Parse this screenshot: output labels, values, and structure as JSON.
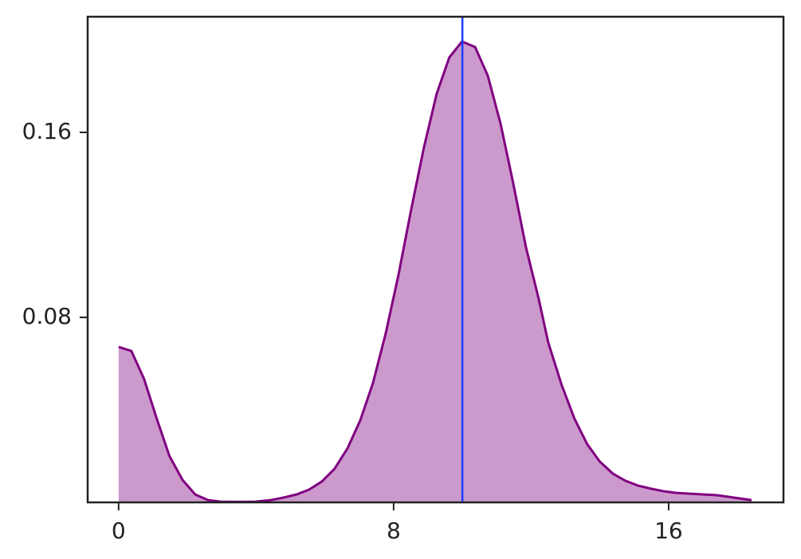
{
  "chart_data": {
    "type": "area",
    "x": [
      0,
      0.37,
      0.74,
      1.11,
      1.48,
      1.86,
      2.23,
      2.6,
      2.97,
      3.5,
      3.97,
      4.43,
      4.8,
      5.17,
      5.54,
      5.91,
      6.28,
      6.66,
      7.03,
      7.4,
      7.77,
      8.14,
      8.51,
      8.88,
      9.25,
      9.62,
      9.99,
      10.37,
      10.74,
      11.11,
      11.48,
      11.85,
      12.22,
      12.5,
      12.89,
      13.26,
      13.63,
      14.0,
      14.38,
      14.75,
      15.12,
      15.49,
      15.86,
      16.23,
      17.41,
      18.41
    ],
    "series": [
      {
        "color": "#800080",
        "values": [
          0.0672,
          0.0655,
          0.0534,
          0.0362,
          0.02,
          0.0097,
          0.0034,
          0.001,
          0.0003,
          0.0002,
          0.0003,
          0.001,
          0.0021,
          0.0034,
          0.0055,
          0.009,
          0.0145,
          0.0234,
          0.0355,
          0.0517,
          0.0731,
          0.0983,
          0.1266,
          0.1534,
          0.1766,
          0.1924,
          0.1993,
          0.1969,
          0.1845,
          0.1638,
          0.1379,
          0.1103,
          0.088,
          0.069,
          0.0507,
          0.0362,
          0.0252,
          0.0176,
          0.0124,
          0.0093,
          0.0072,
          0.0059,
          0.0048,
          0.0041,
          0.0031,
          0.001
        ]
      }
    ],
    "vline": {
      "x": 10,
      "color": "#1a3cff"
    },
    "xlim": [
      -0.9,
      19.34
    ],
    "ylim": [
      0,
      0.21
    ],
    "xticks": [
      0,
      8,
      16
    ],
    "yticks": [
      0.08,
      0.16
    ]
  }
}
